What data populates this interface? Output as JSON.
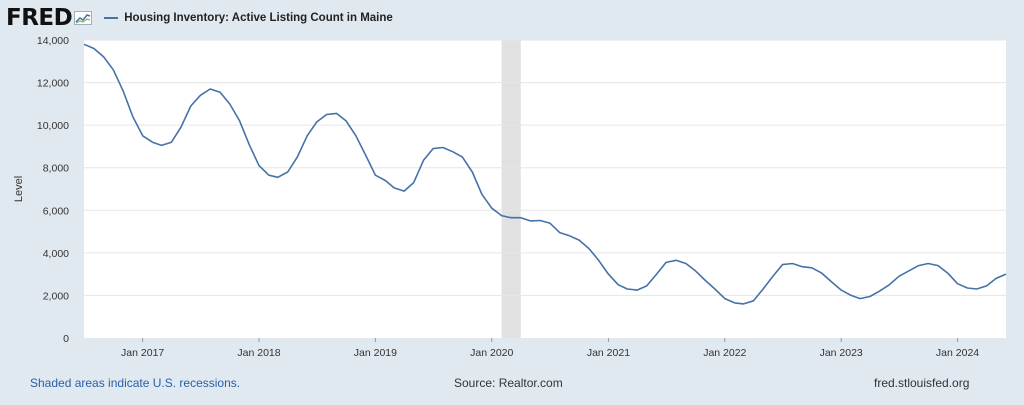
{
  "header": {
    "logo_text": "FRED",
    "logo_icon": "fred-chart-icon",
    "legend_label": "Housing Inventory: Active Listing Count in Maine",
    "series_color": "#4572a7"
  },
  "footer": {
    "recession_note": "Shaded areas indicate U.S. recessions.",
    "source": "Source: Realtor.com",
    "site": "fred.stlouisfed.org"
  },
  "chart_data": {
    "type": "line",
    "title": "",
    "ylabel": "Level",
    "xlabel": "",
    "ylim": [
      0,
      14000
    ],
    "xlim": [
      "2016-07-01",
      "2024-06-01"
    ],
    "y_ticks": [
      0,
      2000,
      4000,
      6000,
      8000,
      10000,
      12000,
      14000
    ],
    "y_tick_labels": [
      "0",
      "2,000",
      "4,000",
      "6,000",
      "8,000",
      "10,000",
      "12,000",
      "14,000"
    ],
    "x_ticks": [
      "2017-01-01",
      "2018-01-01",
      "2019-01-01",
      "2020-01-01",
      "2021-01-01",
      "2022-01-01",
      "2023-01-01",
      "2024-01-01"
    ],
    "x_tick_labels": [
      "Jan 2017",
      "Jan 2018",
      "Jan 2019",
      "Jan 2020",
      "Jan 2021",
      "Jan 2022",
      "Jan 2023",
      "Jan 2024"
    ],
    "grid": true,
    "recessions": [
      {
        "start": "2020-02-01",
        "end": "2020-04-01"
      }
    ],
    "series": [
      {
        "name": "Housing Inventory: Active Listing Count in Maine",
        "color": "#4572a7",
        "x": [
          "2016-07-01",
          "2016-08-01",
          "2016-09-01",
          "2016-10-01",
          "2016-11-01",
          "2016-12-01",
          "2017-01-01",
          "2017-02-01",
          "2017-03-01",
          "2017-04-01",
          "2017-05-01",
          "2017-06-01",
          "2017-07-01",
          "2017-08-01",
          "2017-09-01",
          "2017-10-01",
          "2017-11-01",
          "2017-12-01",
          "2018-01-01",
          "2018-02-01",
          "2018-03-01",
          "2018-04-01",
          "2018-05-01",
          "2018-06-01",
          "2018-07-01",
          "2018-08-01",
          "2018-09-01",
          "2018-10-01",
          "2018-11-01",
          "2018-12-01",
          "2019-01-01",
          "2019-02-01",
          "2019-03-01",
          "2019-04-01",
          "2019-05-01",
          "2019-06-01",
          "2019-07-01",
          "2019-08-01",
          "2019-09-01",
          "2019-10-01",
          "2019-11-01",
          "2019-12-01",
          "2020-01-01",
          "2020-02-01",
          "2020-03-01",
          "2020-04-01",
          "2020-05-01",
          "2020-06-01",
          "2020-07-01",
          "2020-08-01",
          "2020-09-01",
          "2020-10-01",
          "2020-11-01",
          "2020-12-01",
          "2021-01-01",
          "2021-02-01",
          "2021-03-01",
          "2021-04-01",
          "2021-05-01",
          "2021-06-01",
          "2021-07-01",
          "2021-08-01",
          "2021-09-01",
          "2021-10-01",
          "2021-11-01",
          "2021-12-01",
          "2022-01-01",
          "2022-02-01",
          "2022-03-01",
          "2022-04-01",
          "2022-05-01",
          "2022-06-01",
          "2022-07-01",
          "2022-08-01",
          "2022-09-01",
          "2022-10-01",
          "2022-11-01",
          "2022-12-01",
          "2023-01-01",
          "2023-02-01",
          "2023-03-01",
          "2023-04-01",
          "2023-05-01",
          "2023-06-01",
          "2023-07-01",
          "2023-08-01",
          "2023-09-01",
          "2023-10-01",
          "2023-11-01",
          "2023-12-01",
          "2024-01-01",
          "2024-02-01",
          "2024-03-01",
          "2024-04-01",
          "2024-05-01",
          "2024-06-01"
        ],
        "values": [
          13800,
          13600,
          13200,
          12600,
          11600,
          10400,
          9500,
          9200,
          9050,
          9200,
          9900,
          10900,
          11400,
          11700,
          11550,
          11000,
          10200,
          9100,
          8100,
          7650,
          7550,
          7800,
          8500,
          9500,
          10150,
          10500,
          10550,
          10200,
          9500,
          8600,
          7650,
          7400,
          7050,
          6900,
          7300,
          8350,
          8900,
          8950,
          8750,
          8500,
          7800,
          6750,
          6100,
          5750,
          5650,
          5650,
          5500,
          5520,
          5400,
          4950,
          4800,
          4600,
          4200,
          3650,
          3000,
          2500,
          2300,
          2250,
          2450,
          3000,
          3550,
          3650,
          3500,
          3150,
          2700,
          2300,
          1850,
          1650,
          1600,
          1750,
          2300,
          2900,
          3450,
          3500,
          3350,
          3300,
          3050,
          2650,
          2250,
          2000,
          1850,
          1950,
          2200,
          2500,
          2900,
          3150,
          3400,
          3500,
          3400,
          3050,
          2550,
          2350,
          2300,
          2450,
          2800,
          3000
        ]
      }
    ]
  }
}
